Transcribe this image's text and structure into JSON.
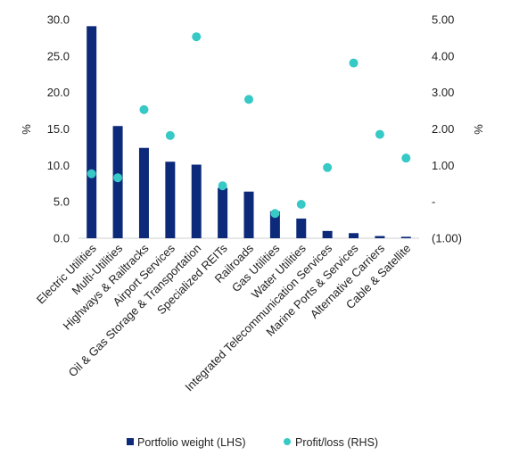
{
  "chart_data": {
    "type": "bar",
    "categories": [
      "Electric Utilities",
      "Multi-Utilities",
      "Highways & Railtracks",
      "Airport Services",
      "Oil & Gas Storage & Transportation",
      "Specialized REITs",
      "Railroads",
      "Gas Utilities",
      "Water Utilities",
      "Integrated Telecommunication Services",
      "Marine Ports & Services",
      "Alternative Carriers",
      "Cable & Satellite"
    ],
    "series": [
      {
        "name": "Portfolio weight (LHS)",
        "type": "bar",
        "axis": "left",
        "color": "#0d2a7a",
        "values": [
          29.1,
          15.4,
          12.4,
          10.5,
          10.1,
          6.9,
          6.4,
          3.7,
          2.7,
          1.0,
          0.7,
          0.3,
          0.2
        ]
      },
      {
        "name": "Profit/loss (RHS)",
        "type": "scatter",
        "axis": "right",
        "color": "#36c9c6",
        "values": [
          0.77,
          0.66,
          2.53,
          1.82,
          4.53,
          0.44,
          2.81,
          -0.32,
          -0.07,
          0.94,
          3.81,
          1.85,
          1.2
        ]
      }
    ],
    "y_left": {
      "label": "%",
      "ylim": [
        0,
        30
      ],
      "ticks": [
        "0.0",
        "5.0",
        "10.0",
        "15.0",
        "20.0",
        "25.0",
        "30.0"
      ]
    },
    "y_right": {
      "label": "%",
      "ylim": [
        -1,
        5
      ],
      "ticks": [
        "(1.00)",
        "-",
        "1.00",
        "2.00",
        "3.00",
        "4.00",
        "5.00"
      ]
    },
    "grid": false,
    "legend": "bottom"
  }
}
